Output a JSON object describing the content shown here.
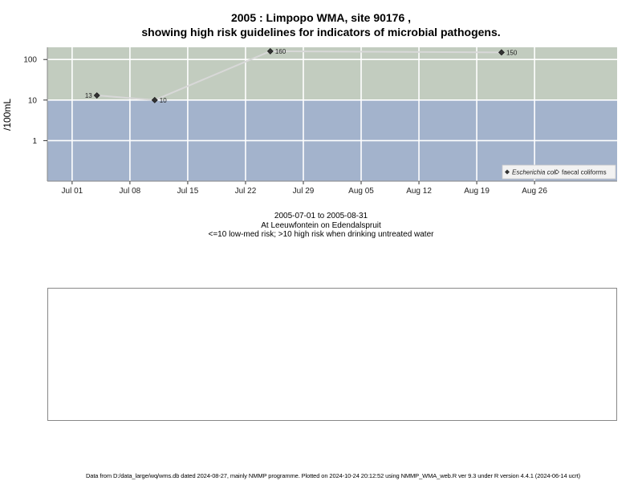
{
  "titles": {
    "line1": "2005 : Limpopo WMA, site 90176 ,",
    "line2": "showing high risk guidelines for indicators of microbial pathogens."
  },
  "subtitles": {
    "date_range": "2005-07-01 to 2005-08-31",
    "location": "At Leeuwfontein on Edendalspruit",
    "risk_note": "<=10 low-med risk; >10 high risk when drinking untreated water"
  },
  "footer": "Data from D:/data_large/wq/wms.db dated 2024-08-27, mainly NMMP programme. Plotted on 2024-10-24 20:12:52 using NMMP_WMA_web.R ver 9.3 under R version 4.4.1 (2024-06-14 ucrt)",
  "colors": {
    "high_risk_zone": "#c2ccbf",
    "low_risk_zone": "#a3b3cc",
    "grid": "#ffffff",
    "series_line": "#d8d8d8",
    "marker": "#333333"
  },
  "chart_data": {
    "type": "line",
    "ylabel": "/100mL",
    "y_scale": "log",
    "ylim": [
      0.1,
      200
    ],
    "xlim": [
      "2005-06-28",
      "2005-09-05"
    ],
    "y_ticks": [
      {
        "value": 1,
        "label": "1"
      },
      {
        "value": 10,
        "label": "10"
      },
      {
        "value": 100,
        "label": "100"
      }
    ],
    "x_ticks": [
      {
        "date": "2005-07-01",
        "label": "Jul 01"
      },
      {
        "date": "2005-07-08",
        "label": "Jul 08"
      },
      {
        "date": "2005-07-15",
        "label": "Jul 15"
      },
      {
        "date": "2005-07-22",
        "label": "Jul 22"
      },
      {
        "date": "2005-07-29",
        "label": "Jul 29"
      },
      {
        "date": "2005-08-05",
        "label": "Aug 05"
      },
      {
        "date": "2005-08-12",
        "label": "Aug 12"
      },
      {
        "date": "2005-08-19",
        "label": "Aug 19"
      },
      {
        "date": "2005-08-26",
        "label": "Aug 26"
      }
    ],
    "risk_threshold": 10,
    "grid": true,
    "legend_position": "bottom-right",
    "legend": [
      {
        "label": "Escherichia coli",
        "marker": "filled-diamond",
        "italic": true
      },
      {
        "label": "faecal coliforms",
        "marker": "open-diamond",
        "italic": false
      }
    ],
    "series": [
      {
        "name": "Escherichia coli",
        "points": [
          {
            "date": "2005-07-04",
            "value": 13,
            "label": "13",
            "label_side": "left"
          },
          {
            "date": "2005-07-11",
            "value": 10,
            "label": "10",
            "label_side": "right"
          },
          {
            "date": "2005-07-25",
            "value": 160,
            "label": "160",
            "label_side": "right"
          },
          {
            "date": "2005-08-22",
            "value": 150,
            "label": "150",
            "label_side": "right"
          }
        ]
      }
    ]
  }
}
